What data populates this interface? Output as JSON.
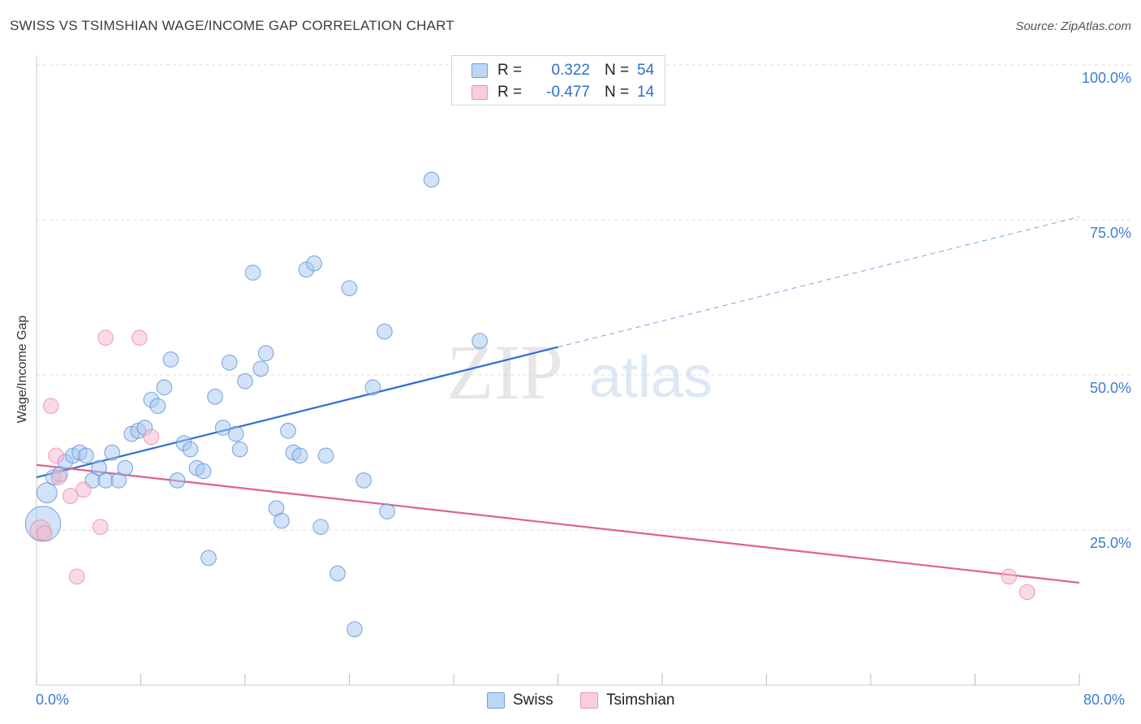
{
  "header": {
    "title": "SWISS VS TSIMSHIAN WAGE/INCOME GAP CORRELATION CHART",
    "source": "Source: ZipAtlas.com"
  },
  "legend_top": {
    "rows": [
      {
        "r_label": "R =",
        "r_value": "0.322",
        "n_label": "N =",
        "n_value": "54",
        "color": "#a8c8f0"
      },
      {
        "r_label": "R =",
        "r_value": "-0.477",
        "n_label": "N =",
        "n_value": "14",
        "color": "#f5b8cc"
      }
    ]
  },
  "legend_bottom": [
    {
      "label": "Swiss",
      "color": "#a8c8f0"
    },
    {
      "label": "Tsimshian",
      "color": "#f5b8cc"
    }
  ],
  "watermark": {
    "zip": "ZIP",
    "atlas": "atlas"
  },
  "colors": {
    "swiss_fill": "#a8c8f0",
    "swiss_stroke": "#5b8fd8",
    "swiss_line": "#2f6fcf",
    "tsim_fill": "#f5b8cc",
    "tsim_stroke": "#e58aa8",
    "tsim_line": "#e0608f",
    "tick_label": "#3d7bd6",
    "grid": "#dcdcdc"
  },
  "chart_data": {
    "type": "scatter",
    "title": "SWISS VS TSIMSHIAN WAGE/INCOME GAP CORRELATION CHART",
    "xlabel": "",
    "ylabel": "Wage/Income Gap",
    "xlim": [
      0,
      80
    ],
    "ylim": [
      0,
      100
    ],
    "x_tick_labels": [
      "0.0%",
      "80.0%"
    ],
    "y_ticks": [
      25,
      50,
      75,
      100
    ],
    "y_tick_labels": [
      "25.0%",
      "50.0%",
      "75.0%",
      "100.0%"
    ],
    "grid": true,
    "legend_position": "top-center",
    "series": [
      {
        "name": "Swiss",
        "r": 0.322,
        "n": 54,
        "trend": {
          "x0": 0,
          "y0": 33.5,
          "x1": 40,
          "y1": 54.5,
          "dashed_to_x": 80,
          "dashed_to_y": 75.5
        },
        "points": [
          [
            0.5,
            26,
            14
          ],
          [
            0.8,
            31,
            8
          ],
          [
            1.3,
            33.5,
            6
          ],
          [
            1.8,
            34,
            6
          ],
          [
            2.2,
            36,
            6
          ],
          [
            2.8,
            37,
            6
          ],
          [
            3.3,
            37.5,
            6
          ],
          [
            3.8,
            37,
            6
          ],
          [
            4.3,
            33,
            6
          ],
          [
            4.8,
            35,
            6
          ],
          [
            5.3,
            33,
            6
          ],
          [
            5.8,
            37.5,
            6
          ],
          [
            6.3,
            33,
            6
          ],
          [
            6.8,
            35,
            6
          ],
          [
            7.3,
            40.5,
            6
          ],
          [
            7.8,
            41,
            6
          ],
          [
            8.3,
            41.5,
            6
          ],
          [
            8.8,
            46,
            6
          ],
          [
            9.3,
            45,
            6
          ],
          [
            9.8,
            48,
            6
          ],
          [
            10.3,
            52.5,
            6
          ],
          [
            10.8,
            33,
            6
          ],
          [
            11.3,
            39,
            6
          ],
          [
            11.8,
            38,
            6
          ],
          [
            12.3,
            35,
            6
          ],
          [
            12.8,
            34.5,
            6
          ],
          [
            13.2,
            20.5,
            6
          ],
          [
            13.7,
            46.5,
            6
          ],
          [
            14.3,
            41.5,
            6
          ],
          [
            14.8,
            52,
            6
          ],
          [
            15.3,
            40.5,
            6
          ],
          [
            15.6,
            38,
            6
          ],
          [
            16.0,
            49,
            6
          ],
          [
            16.6,
            66.5,
            6
          ],
          [
            17.2,
            51,
            6
          ],
          [
            17.6,
            53.5,
            6
          ],
          [
            18.4,
            28.5,
            6
          ],
          [
            18.8,
            26.5,
            6
          ],
          [
            19.3,
            41,
            6
          ],
          [
            19.7,
            37.5,
            6
          ],
          [
            20.2,
            37,
            6
          ],
          [
            20.7,
            67,
            6
          ],
          [
            21.3,
            68,
            6
          ],
          [
            21.8,
            25.5,
            6
          ],
          [
            22.2,
            37,
            6
          ],
          [
            23.1,
            18,
            6
          ],
          [
            24.0,
            64,
            6
          ],
          [
            24.4,
            9,
            6
          ],
          [
            25.1,
            33,
            6
          ],
          [
            25.8,
            48,
            6
          ],
          [
            26.7,
            57,
            6
          ],
          [
            26.9,
            28,
            6
          ],
          [
            30.3,
            81.5,
            6
          ],
          [
            34.0,
            55.5,
            6
          ]
        ]
      },
      {
        "name": "Tsimshian",
        "r": -0.477,
        "n": 14,
        "trend": {
          "x0": 0,
          "y0": 35.5,
          "x1": 80,
          "y1": 16.5
        },
        "points": [
          [
            0.3,
            25,
            8
          ],
          [
            0.6,
            24.5,
            6
          ],
          [
            1.1,
            45,
            6
          ],
          [
            1.5,
            37,
            6
          ],
          [
            1.7,
            33.5,
            6
          ],
          [
            2.6,
            30.5,
            6
          ],
          [
            3.1,
            17.5,
            6
          ],
          [
            3.6,
            31.5,
            6
          ],
          [
            4.9,
            25.5,
            6
          ],
          [
            5.3,
            56,
            6
          ],
          [
            7.9,
            56,
            6
          ],
          [
            8.8,
            40,
            6
          ],
          [
            74.6,
            17.5,
            6
          ],
          [
            76.0,
            15,
            6
          ]
        ]
      }
    ]
  }
}
